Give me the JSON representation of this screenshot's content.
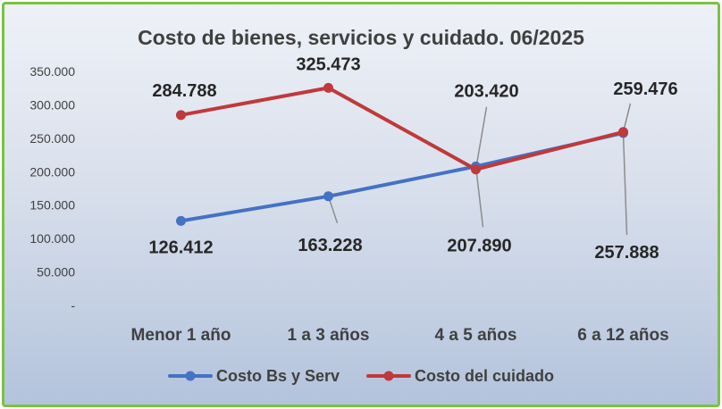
{
  "chart_data": {
    "type": "line",
    "title": "Costo de bienes, servicios y cuidado. 06/2025",
    "categories": [
      "Menor 1 año",
      "1 a 3 años",
      "4 a 5 años",
      "6 a 12 años"
    ],
    "ylim": [
      0,
      350000
    ],
    "yticks": [
      {
        "value": 0,
        "label": "-"
      },
      {
        "value": 50000,
        "label": "50.000"
      },
      {
        "value": 100000,
        "label": "100.000"
      },
      {
        "value": 150000,
        "label": "150.000"
      },
      {
        "value": 200000,
        "label": "200.000"
      },
      {
        "value": 250000,
        "label": "250.000"
      },
      {
        "value": 300000,
        "label": "300.000"
      },
      {
        "value": 350000,
        "label": "350.000"
      }
    ],
    "series": [
      {
        "name": "Costo Bs y Serv",
        "color": "#4472c4",
        "values": [
          126412,
          163228,
          207890,
          257888
        ],
        "labels": [
          "126.412",
          "163.228",
          "207.890",
          "257.888"
        ]
      },
      {
        "name": "Costo del cuidado",
        "color": "#c0393b",
        "values": [
          284788,
          325473,
          203420,
          259476
        ],
        "labels": [
          "284.788",
          "325.473",
          "203.420",
          "259.476"
        ]
      }
    ],
    "legend_position": "bottom"
  }
}
